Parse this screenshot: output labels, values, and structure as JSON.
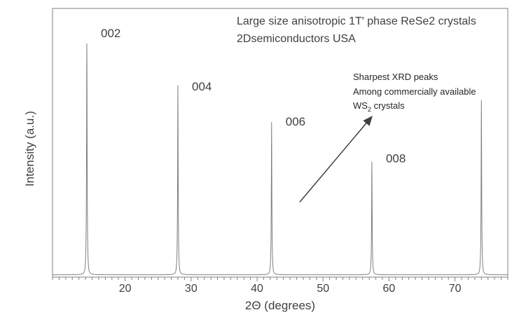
{
  "chart_data": {
    "type": "line",
    "title_lines": [
      "Large size anisotropic 1T′ phase ReSe2 crystals",
      "2Dsemiconductors USA"
    ],
    "xlabel": "2Θ (degrees)",
    "ylabel": "Intensity (a.u.)",
    "xlim": [
      9,
      78
    ],
    "ylim": [
      0,
      1
    ],
    "x_ticks": [
      20,
      30,
      40,
      50,
      60,
      70
    ],
    "grid": false,
    "line_color": "#808080",
    "peaks": [
      {
        "label": "002",
        "x": 14.2,
        "intensity": 1.0
      },
      {
        "label": "004",
        "x": 28.0,
        "intensity": 0.77
      },
      {
        "label": "006",
        "x": 42.2,
        "intensity": 0.62
      },
      {
        "label": "008",
        "x": 57.4,
        "intensity": 0.46
      },
      {
        "label": "",
        "x": 74.0,
        "intensity": 0.71
      }
    ],
    "annotation": {
      "lines": [
        "Sharpest XRD peaks",
        "Among commercially available"
      ],
      "ws2_prefix": "WS",
      "ws2_subscript": "2",
      "ws2_suffix": " crystals",
      "arrow_color": "#404040"
    }
  }
}
